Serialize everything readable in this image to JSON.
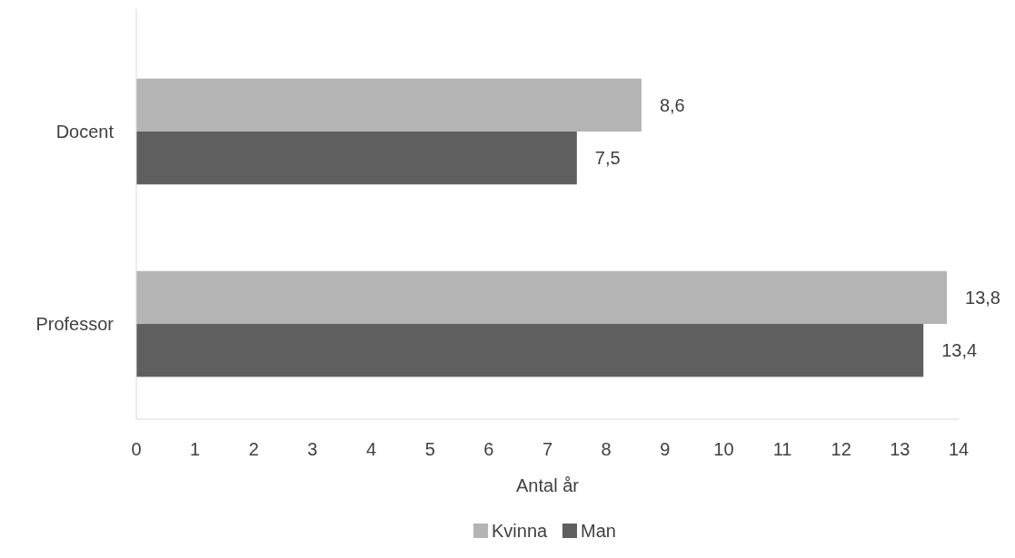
{
  "chart_data": {
    "type": "bar",
    "orientation": "horizontal",
    "categories": [
      "Docent",
      "Professor"
    ],
    "series": [
      {
        "name": "Kvinna",
        "color": "#b4b4b4",
        "values": [
          8.6,
          13.8
        ],
        "value_labels": [
          "8,6",
          "13,8"
        ]
      },
      {
        "name": "Man",
        "color": "#5f5f5f",
        "values": [
          7.5,
          13.4
        ],
        "value_labels": [
          "7,5",
          "13,4"
        ]
      }
    ],
    "xlim": [
      0,
      14
    ],
    "xticks": [
      0,
      1,
      2,
      3,
      4,
      5,
      6,
      7,
      8,
      9,
      10,
      11,
      12,
      13,
      14
    ],
    "xlabel": "Antal år",
    "grid": false,
    "legend": "bottom"
  }
}
